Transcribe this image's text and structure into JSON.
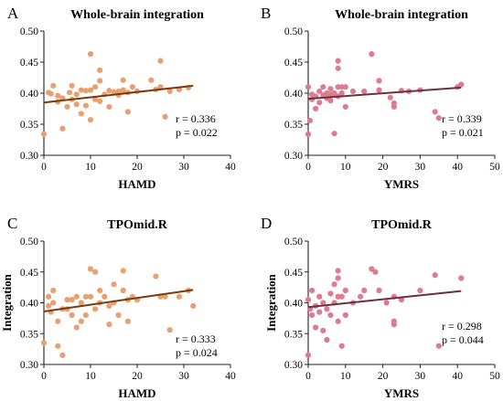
{
  "chart_data": [
    {
      "type": "scatter",
      "panel_label": "A",
      "title": "Whole-brain integration",
      "xlabel": "HAMD",
      "ylabel": "",
      "xlim": [
        0,
        40
      ],
      "ylim": [
        0.3,
        0.5
      ],
      "xticks": [
        0,
        10,
        20,
        30,
        40
      ],
      "yticks": [
        0.3,
        0.35,
        0.4,
        0.45,
        0.5
      ],
      "point_color": "#E8A070",
      "line_color": "#7A3A0A",
      "fit_line": {
        "x": [
          0,
          32
        ],
        "y": [
          0.385,
          0.412
        ]
      },
      "stats": {
        "r": "r = 0.336",
        "p": "p = 0.022"
      },
      "points": [
        [
          0,
          0.334
        ],
        [
          1,
          0.401
        ],
        [
          1.5,
          0.399
        ],
        [
          2,
          0.412
        ],
        [
          3,
          0.386
        ],
        [
          3,
          0.396
        ],
        [
          4,
          0.343
        ],
        [
          4,
          0.392
        ],
        [
          5,
          0.378
        ],
        [
          5.5,
          0.401
        ],
        [
          6,
          0.412
        ],
        [
          6,
          0.39
        ],
        [
          7,
          0.382
        ],
        [
          7,
          0.398
        ],
        [
          8,
          0.405
        ],
        [
          8,
          0.367
        ],
        [
          9,
          0.404
        ],
        [
          9,
          0.38
        ],
        [
          10,
          0.463
        ],
        [
          10,
          0.405
        ],
        [
          10,
          0.357
        ],
        [
          11,
          0.41
        ],
        [
          11,
          0.39
        ],
        [
          12,
          0.437
        ],
        [
          12,
          0.42
        ],
        [
          12,
          0.387
        ],
        [
          13,
          0.398
        ],
        [
          14,
          0.404
        ],
        [
          14,
          0.378
        ],
        [
          15,
          0.402
        ],
        [
          16,
          0.403
        ],
        [
          16,
          0.397
        ],
        [
          17,
          0.421
        ],
        [
          17,
          0.405
        ],
        [
          18,
          0.401
        ],
        [
          18,
          0.37
        ],
        [
          19,
          0.41
        ],
        [
          20,
          0.403
        ],
        [
          23,
          0.421
        ],
        [
          24,
          0.406
        ],
        [
          25,
          0.452
        ],
        [
          25,
          0.41
        ],
        [
          26,
          0.362
        ],
        [
          27,
          0.403
        ],
        [
          29,
          0.406
        ],
        [
          31,
          0.409
        ]
      ]
    },
    {
      "type": "scatter",
      "panel_label": "B",
      "title": "Whole-brain integration",
      "xlabel": "YMRS",
      "ylabel": "",
      "xlim": [
        0,
        50
      ],
      "ylim": [
        0.3,
        0.5
      ],
      "xticks": [
        0,
        10,
        20,
        30,
        40,
        50
      ],
      "yticks": [
        0.3,
        0.35,
        0.4,
        0.45,
        0.5
      ],
      "point_color": "#E07A90",
      "line_color": "#6A3040",
      "fit_line": {
        "x": [
          0,
          41
        ],
        "y": [
          0.391,
          0.409
        ]
      },
      "stats": {
        "r": "r = 0.339",
        "p": "p = 0.021"
      },
      "points": [
        [
          0,
          0.334
        ],
        [
          0,
          0.41
        ],
        [
          0.5,
          0.356
        ],
        [
          1,
          0.39
        ],
        [
          1,
          0.398
        ],
        [
          2,
          0.375
        ],
        [
          2,
          0.395
        ],
        [
          3,
          0.403
        ],
        [
          3,
          0.385
        ],
        [
          4,
          0.397
        ],
        [
          4,
          0.41
        ],
        [
          5,
          0.4
        ],
        [
          5,
          0.392
        ],
        [
          6,
          0.407
        ],
        [
          6,
          0.398
        ],
        [
          6,
          0.388
        ],
        [
          7,
          0.335
        ],
        [
          7,
          0.4
        ],
        [
          8,
          0.452
        ],
        [
          8,
          0.44
        ],
        [
          8,
          0.41
        ],
        [
          8,
          0.395
        ],
        [
          9,
          0.4
        ],
        [
          9,
          0.41
        ],
        [
          10,
          0.41
        ],
        [
          10,
          0.378
        ],
        [
          12,
          0.403
        ],
        [
          15,
          0.403
        ],
        [
          17,
          0.463
        ],
        [
          19,
          0.42
        ],
        [
          19,
          0.405
        ],
        [
          22,
          0.393
        ],
        [
          23,
          0.384
        ],
        [
          23,
          0.378
        ],
        [
          25,
          0.404
        ],
        [
          27,
          0.403
        ],
        [
          30,
          0.405
        ],
        [
          34,
          0.37
        ],
        [
          35,
          0.36
        ],
        [
          40,
          0.41
        ],
        [
          41,
          0.414
        ]
      ]
    },
    {
      "type": "scatter",
      "panel_label": "C",
      "title": "TPOmid.R",
      "xlabel": "HAMD",
      "ylabel": "Integration",
      "xlim": [
        0,
        40
      ],
      "ylim": [
        0.3,
        0.5
      ],
      "xticks": [
        0,
        10,
        20,
        30,
        40
      ],
      "yticks": [
        0.3,
        0.35,
        0.4,
        0.45,
        0.5
      ],
      "point_color": "#E8A070",
      "line_color": "#7A3A0A",
      "fit_line": {
        "x": [
          0,
          32
        ],
        "y": [
          0.386,
          0.421
        ]
      },
      "stats": {
        "r": "r = 0.333",
        "p": "p = 0.024"
      },
      "points": [
        [
          0,
          0.335
        ],
        [
          1,
          0.41
        ],
        [
          1,
          0.395
        ],
        [
          1.5,
          0.385
        ],
        [
          2,
          0.42
        ],
        [
          2,
          0.4
        ],
        [
          3,
          0.37
        ],
        [
          3,
          0.33
        ],
        [
          4,
          0.39
        ],
        [
          4,
          0.315
        ],
        [
          5,
          0.405
        ],
        [
          5,
          0.39
        ],
        [
          6,
          0.405
        ],
        [
          6,
          0.38
        ],
        [
          7,
          0.41
        ],
        [
          7,
          0.36
        ],
        [
          8,
          0.4
        ],
        [
          8,
          0.37
        ],
        [
          9,
          0.41
        ],
        [
          9,
          0.38
        ],
        [
          10,
          0.455
        ],
        [
          10,
          0.41
        ],
        [
          11,
          0.39
        ],
        [
          11,
          0.45
        ],
        [
          12,
          0.42
        ],
        [
          12,
          0.4
        ],
        [
          13,
          0.41
        ],
        [
          14,
          0.395
        ],
        [
          14,
          0.365
        ],
        [
          15,
          0.43
        ],
        [
          15,
          0.4
        ],
        [
          16,
          0.38
        ],
        [
          17,
          0.452
        ],
        [
          17,
          0.42
        ],
        [
          18,
          0.405
        ],
        [
          18,
          0.37
        ],
        [
          19,
          0.41
        ],
        [
          20,
          0.405
        ],
        [
          24,
          0.443
        ],
        [
          25,
          0.41
        ],
        [
          26,
          0.41
        ],
        [
          27,
          0.356
        ],
        [
          29,
          0.41
        ],
        [
          31,
          0.42
        ],
        [
          32,
          0.395
        ]
      ]
    },
    {
      "type": "scatter",
      "panel_label": "D",
      "title": "TPOmid.R",
      "xlabel": "YMRS",
      "ylabel": "Integration",
      "xlim": [
        0,
        50
      ],
      "ylim": [
        0.3,
        0.5
      ],
      "xticks": [
        0,
        10,
        20,
        30,
        40,
        50
      ],
      "yticks": [
        0.3,
        0.35,
        0.4,
        0.45,
        0.5
      ],
      "point_color": "#E07A90",
      "line_color": "#6A3040",
      "fit_line": {
        "x": [
          0,
          41
        ],
        "y": [
          0.393,
          0.419
        ]
      },
      "stats": {
        "r": "r = 0.298",
        "p": "p = 0.044"
      },
      "points": [
        [
          0,
          0.315
        ],
        [
          0,
          0.405
        ],
        [
          0.5,
          0.39
        ],
        [
          1,
          0.42
        ],
        [
          1,
          0.38
        ],
        [
          2,
          0.395
        ],
        [
          2,
          0.36
        ],
        [
          3,
          0.41
        ],
        [
          3,
          0.385
        ],
        [
          4,
          0.4
        ],
        [
          4,
          0.355
        ],
        [
          5,
          0.39
        ],
        [
          5,
          0.34
        ],
        [
          6,
          0.415
        ],
        [
          6,
          0.38
        ],
        [
          7,
          0.43
        ],
        [
          7,
          0.4
        ],
        [
          8,
          0.452
        ],
        [
          8,
          0.44
        ],
        [
          8,
          0.41
        ],
        [
          8,
          0.37
        ],
        [
          9,
          0.41
        ],
        [
          9,
          0.33
        ],
        [
          10,
          0.42
        ],
        [
          10,
          0.38
        ],
        [
          12,
          0.4
        ],
        [
          14,
          0.41
        ],
        [
          15,
          0.42
        ],
        [
          17,
          0.455
        ],
        [
          18,
          0.45
        ],
        [
          19,
          0.42
        ],
        [
          21,
          0.4
        ],
        [
          23,
          0.41
        ],
        [
          23,
          0.37
        ],
        [
          23,
          0.365
        ],
        [
          25,
          0.405
        ],
        [
          30,
          0.42
        ],
        [
          34,
          0.445
        ],
        [
          35,
          0.33
        ],
        [
          41,
          0.44
        ]
      ]
    }
  ]
}
